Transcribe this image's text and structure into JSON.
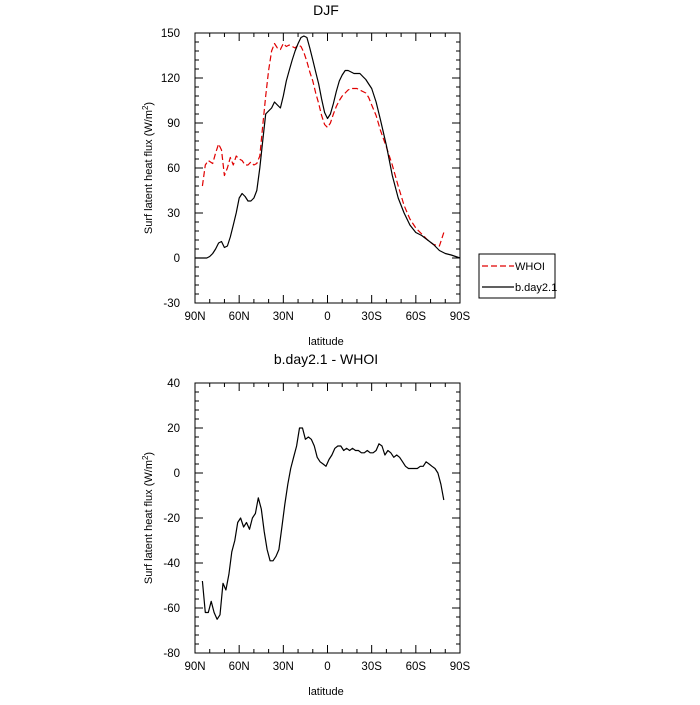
{
  "chart_data": [
    {
      "type": "line",
      "title": "DJF",
      "xlabel": "latitude",
      "ylabel": "Surf latent heat flux (W/m",
      "ylabel_sup": "2",
      "ylabel_close": ")",
      "xlim": [
        90,
        -90
      ],
      "ylim": [
        -30,
        150
      ],
      "x_ticks": [
        90,
        60,
        30,
        0,
        -30,
        -60,
        -90
      ],
      "x_tick_labels": [
        "90N",
        "60N",
        "30N",
        "0",
        "30S",
        "60S",
        "90S"
      ],
      "y_ticks": [
        -30,
        0,
        30,
        60,
        90,
        120,
        150
      ],
      "y_tick_labels": [
        "-30",
        "0",
        "30",
        "60",
        "90",
        "120",
        "150"
      ],
      "legend": {
        "placement": "right",
        "entries": [
          "WHOI",
          "b.day2.1"
        ]
      },
      "series": [
        {
          "name": "WHOI",
          "color": "#e00000",
          "dash": "dashed",
          "x": [
            85,
            83,
            81,
            78,
            76,
            74,
            72,
            70,
            68,
            66,
            64,
            62,
            60,
            58,
            56,
            54,
            52,
            50,
            48,
            46,
            44,
            42,
            40,
            38,
            36,
            34,
            32,
            30,
            28,
            26,
            24,
            22,
            20,
            18,
            16,
            14,
            12,
            10,
            8,
            6,
            4,
            2,
            0,
            -2,
            -4,
            -6,
            -8,
            -10,
            -12,
            -14,
            -16,
            -18,
            -20,
            -22,
            -24,
            -26,
            -28,
            -30,
            -33,
            -36,
            -40,
            -44,
            -48,
            -52,
            -56,
            -60,
            -64,
            -68,
            -72,
            -76,
            -79
          ],
          "y": [
            48,
            62,
            65,
            63,
            70,
            76,
            72,
            55,
            60,
            67,
            62,
            68,
            66,
            65,
            62,
            62,
            64,
            62,
            63,
            68,
            88,
            108,
            125,
            138,
            143,
            140,
            139,
            143,
            141,
            142,
            141,
            140,
            142,
            141,
            137,
            131,
            124,
            118,
            110,
            103,
            95,
            89,
            87,
            90,
            96,
            101,
            105,
            108,
            110,
            112,
            113,
            113,
            113,
            112,
            111,
            110,
            107,
            102,
            95,
            85,
            74,
            62,
            48,
            35,
            26,
            20,
            16,
            12,
            9,
            8,
            17
          ]
        },
        {
          "name": "b.day2.1",
          "color": "#000000",
          "dash": "solid",
          "x": [
            90,
            84,
            82,
            80,
            78,
            76,
            74,
            72,
            70,
            68,
            66,
            64,
            62,
            60,
            58,
            56,
            54,
            52,
            50,
            48,
            46,
            44,
            42,
            40,
            38,
            36,
            34,
            32,
            30,
            28,
            26,
            24,
            22,
            20,
            18,
            16,
            14,
            12,
            10,
            8,
            6,
            4,
            2,
            0,
            -2,
            -4,
            -6,
            -8,
            -10,
            -12,
            -14,
            -16,
            -18,
            -20,
            -22,
            -24,
            -26,
            -28,
            -30,
            -33,
            -36,
            -40,
            -44,
            -48,
            -52,
            -56,
            -60,
            -64,
            -68,
            -72,
            -76,
            -80,
            -84,
            -90
          ],
          "y": [
            0,
            0,
            0,
            1,
            3,
            6,
            10,
            11,
            7,
            8,
            14,
            22,
            30,
            40,
            43,
            41,
            38,
            38,
            40,
            45,
            60,
            78,
            96,
            98,
            100,
            104,
            102,
            100,
            108,
            118,
            125,
            132,
            138,
            143,
            147,
            148,
            147,
            140,
            132,
            124,
            116,
            106,
            97,
            93,
            96,
            103,
            111,
            118,
            122,
            125,
            125,
            124,
            123,
            123,
            123,
            121,
            119,
            116,
            113,
            104,
            92,
            75,
            55,
            40,
            30,
            22,
            17,
            15,
            12,
            9,
            5,
            3,
            2,
            0
          ]
        }
      ]
    },
    {
      "type": "line",
      "title": "b.day2.1 - WHOI",
      "xlabel": "latitude",
      "ylabel": "Surf latent heat flux (W/m",
      "ylabel_sup": "2",
      "ylabel_close": ")",
      "xlim": [
        90,
        -90
      ],
      "ylim": [
        -80,
        40
      ],
      "x_ticks": [
        90,
        60,
        30,
        0,
        -30,
        -60,
        -90
      ],
      "x_tick_labels": [
        "90N",
        "60N",
        "30N",
        "0",
        "30S",
        "60S",
        "90S"
      ],
      "y_ticks": [
        -80,
        -60,
        -40,
        -20,
        0,
        20,
        40
      ],
      "y_tick_labels": [
        "-80",
        "-60",
        "-40",
        "-20",
        "0",
        "20",
        "40"
      ],
      "series": [
        {
          "name": "b.day2.1 - WHOI",
          "color": "#000000",
          "dash": "solid",
          "x": [
            85,
            83,
            81,
            79,
            77,
            75,
            73,
            71,
            69,
            67,
            65,
            63,
            61,
            59,
            57,
            55,
            53,
            51,
            49,
            47,
            45,
            43,
            41,
            39,
            37,
            35,
            33,
            31,
            29,
            27,
            25,
            23,
            21,
            19,
            17,
            15,
            13,
            11,
            9,
            7,
            5,
            3,
            1,
            -1,
            -3,
            -5,
            -7,
            -9,
            -11,
            -13,
            -15,
            -17,
            -19,
            -21,
            -23,
            -25,
            -27,
            -29,
            -31,
            -33,
            -35,
            -37,
            -39,
            -41,
            -43,
            -45,
            -47,
            -49,
            -51,
            -53,
            -55,
            -57,
            -59,
            -61,
            -63,
            -65,
            -67,
            -69,
            -71,
            -73,
            -75,
            -77,
            -79
          ],
          "y": [
            -48,
            -62,
            -62,
            -57,
            -62,
            -65,
            -63,
            -49,
            -52,
            -45,
            -35,
            -30,
            -22,
            -20,
            -24,
            -22,
            -25,
            -20,
            -18,
            -11,
            -16,
            -26,
            -34,
            -39,
            -39,
            -37,
            -34,
            -24,
            -14,
            -5,
            2,
            7,
            12,
            20,
            20,
            15,
            16,
            15,
            12,
            7,
            5,
            4,
            3,
            6,
            8,
            11,
            12,
            12,
            10,
            11,
            10,
            11,
            10,
            10,
            9,
            9,
            10,
            9,
            9,
            10,
            13,
            12,
            8,
            10,
            9,
            7,
            8,
            7,
            5,
            3,
            2,
            2,
            2,
            2,
            3,
            3,
            5,
            4,
            3,
            2,
            0,
            -5,
            -12
          ]
        }
      ]
    }
  ]
}
